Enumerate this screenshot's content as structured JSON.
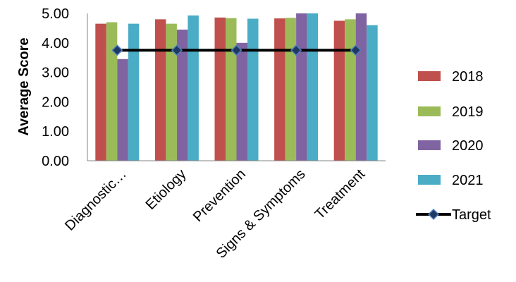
{
  "chart_data": {
    "type": "bar",
    "title": "",
    "xlabel": "",
    "ylabel": "Average Score",
    "ylim": [
      0,
      5
    ],
    "yticks": [
      "0.00",
      "1.00",
      "2.00",
      "3.00",
      "4.00",
      "5.00"
    ],
    "categories": [
      "Diagnostic…",
      "Etiology",
      "Prevention",
      "Signs & Symptoms",
      "Treatment"
    ],
    "series": [
      {
        "name": "2018",
        "color": "#C0504D",
        "values": [
          4.65,
          4.8,
          4.86,
          4.83,
          4.75
        ]
      },
      {
        "name": "2019",
        "color": "#9BBB59",
        "values": [
          4.7,
          4.65,
          4.84,
          4.85,
          4.8
        ]
      },
      {
        "name": "2020",
        "color": "#8064A2",
        "values": [
          3.45,
          4.45,
          4.0,
          5.0,
          5.0
        ]
      },
      {
        "name": "2021",
        "color": "#4BACC6",
        "values": [
          4.65,
          4.93,
          4.82,
          5.0,
          4.6
        ]
      }
    ],
    "target": {
      "name": "Target",
      "value": 3.75,
      "line_color": "#000000",
      "marker_color": "#1F3864",
      "marker": "diamond"
    },
    "grid": false,
    "legend_position": "right"
  }
}
